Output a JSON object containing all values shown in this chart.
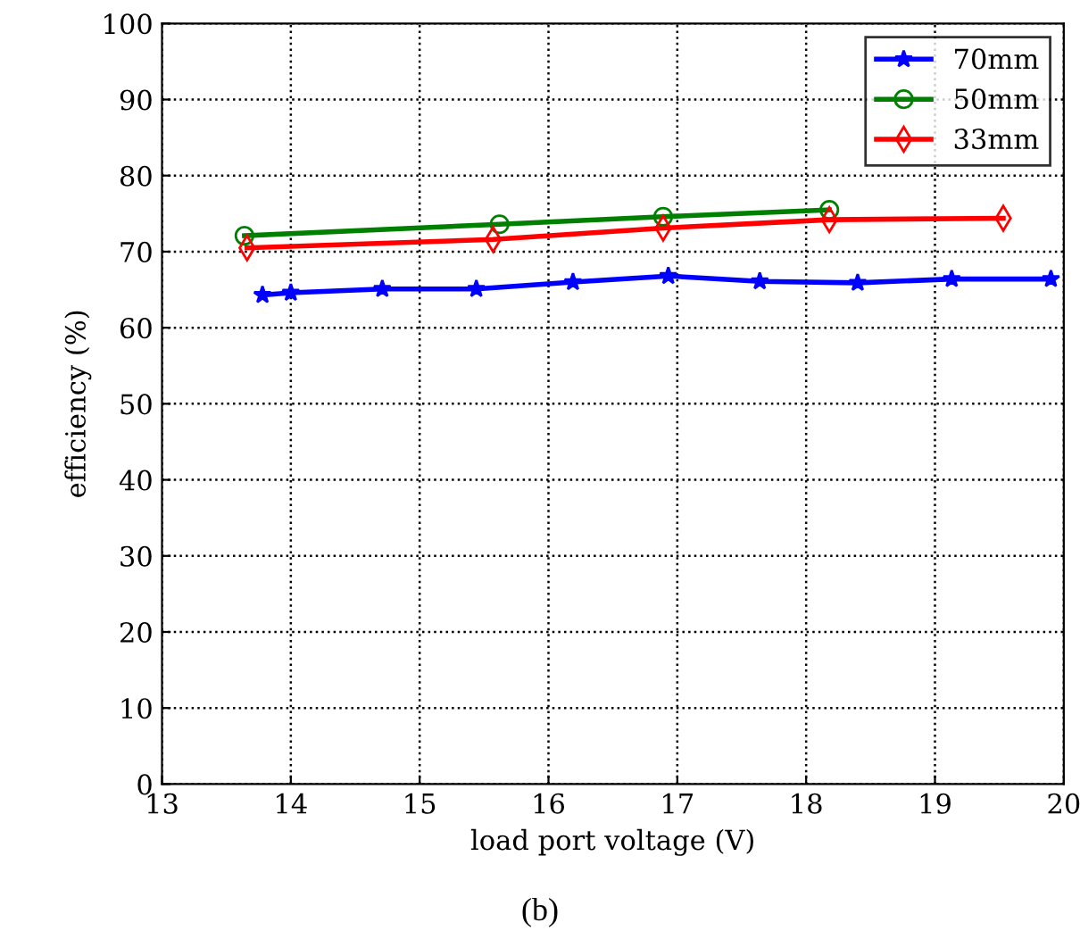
{
  "chart_data": {
    "type": "line",
    "xlabel": "load port voltage (V)",
    "ylabel": "efficiency (%)",
    "annotations": [
      "(b)"
    ],
    "xlim": [
      13,
      20
    ],
    "xticks": [
      13,
      14,
      15,
      16,
      17,
      18,
      19,
      20
    ],
    "ylim": [
      0,
      100
    ],
    "yticks": [
      0,
      10,
      20,
      30,
      40,
      50,
      60,
      70,
      80,
      90,
      100
    ],
    "grid": true,
    "legend": "top right",
    "series": [
      {
        "name": "70mm",
        "color": "#0000ff",
        "marker": "star",
        "x": [
          13.78,
          14.0,
          14.71,
          15.44,
          16.19,
          16.93,
          17.64,
          18.4,
          19.13,
          19.9
        ],
        "values": [
          64.3,
          64.6,
          65.1,
          65.1,
          66.0,
          66.8,
          66.1,
          65.9,
          66.4,
          66.4
        ]
      },
      {
        "name": "50mm",
        "color": "#008000",
        "marker": "circle",
        "x": [
          13.64,
          15.62,
          16.89,
          18.18
        ],
        "values": [
          72.1,
          73.6,
          74.6,
          75.5
        ]
      },
      {
        "name": "33mm",
        "color": "#ff0000",
        "marker": "diamond",
        "x": [
          13.66,
          15.57,
          16.89,
          18.18,
          19.53
        ],
        "values": [
          70.5,
          71.6,
          73.1,
          74.2,
          74.4
        ]
      }
    ]
  }
}
